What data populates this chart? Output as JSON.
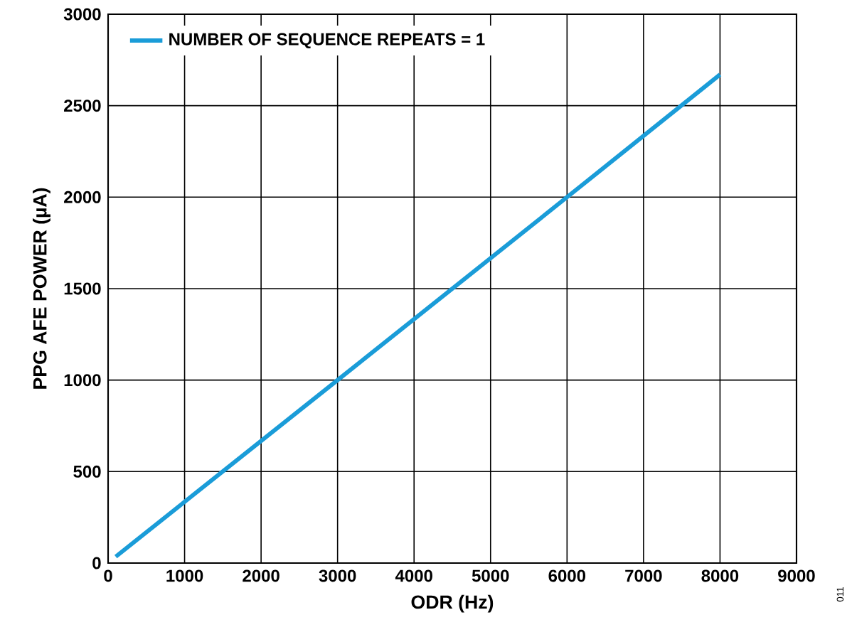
{
  "chart_data": {
    "type": "line",
    "xlabel": "ODR (Hz)",
    "ylabel": "PPG AFE POWER (µA)",
    "x": [
      100,
      3000,
      6000,
      8000
    ],
    "series": [
      {
        "name": "NUMBER OF SEQUENCE REPEATS = 1",
        "color": "#1a9cd8",
        "values": [
          35,
          1000,
          2000,
          2670
        ]
      }
    ],
    "xlim": [
      0,
      9000
    ],
    "ylim": [
      0,
      3000
    ],
    "xticks": [
      0,
      1000,
      2000,
      3000,
      4000,
      5000,
      6000,
      7000,
      8000,
      9000
    ],
    "yticks": [
      0,
      500,
      1000,
      1500,
      2000,
      2500,
      3000
    ],
    "grid": true,
    "legend": "top left",
    "line_style": "solid",
    "annotations": [
      "011"
    ]
  }
}
